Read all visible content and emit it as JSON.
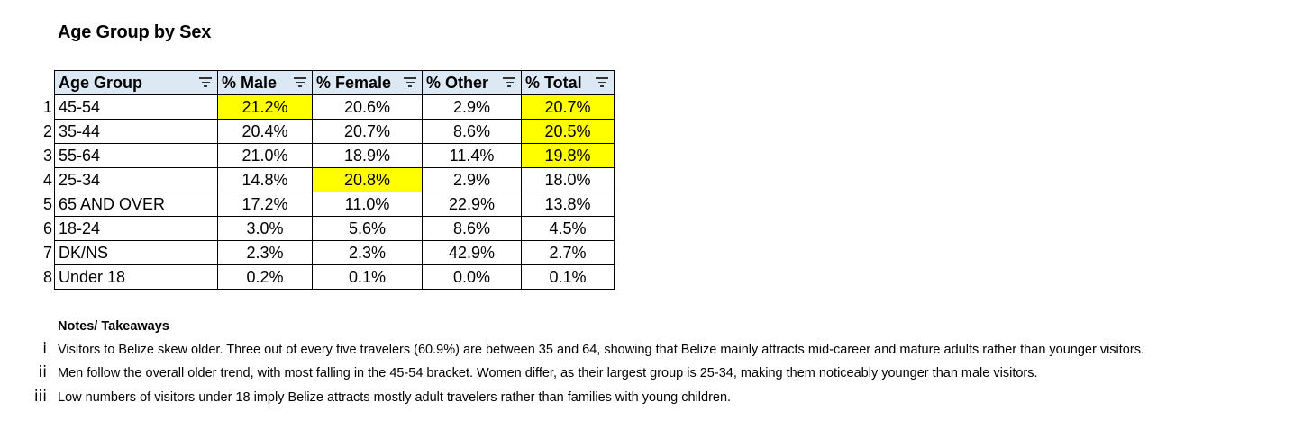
{
  "title": "Age Group by Sex",
  "table": {
    "headers": [
      "Age Group",
      "% Male",
      "% Female",
      "% Other",
      "% Total"
    ],
    "highlight_color": "#ffff00",
    "header_bg": "#dde8f5",
    "filter_icon": "filter-icon",
    "rows": [
      {
        "n": "1",
        "age": "45-54",
        "male": "21.2%",
        "female": "20.6%",
        "other": "2.9%",
        "total": "20.7%",
        "hl": [
          "male",
          "total"
        ]
      },
      {
        "n": "2",
        "age": "35-44",
        "male": "20.4%",
        "female": "20.7%",
        "other": "8.6%",
        "total": "20.5%",
        "hl": [
          "total"
        ]
      },
      {
        "n": "3",
        "age": "55-64",
        "male": "21.0%",
        "female": "18.9%",
        "other": "11.4%",
        "total": "19.8%",
        "hl": [
          "total"
        ]
      },
      {
        "n": "4",
        "age": "25-34",
        "male": "14.8%",
        "female": "20.8%",
        "other": "2.9%",
        "total": "18.0%",
        "hl": [
          "female"
        ]
      },
      {
        "n": "5",
        "age": "65 AND OVER",
        "male": "17.2%",
        "female": "11.0%",
        "other": "22.9%",
        "total": "13.8%",
        "hl": []
      },
      {
        "n": "6",
        "age": "18-24",
        "male": "3.0%",
        "female": "5.6%",
        "other": "8.6%",
        "total": "4.5%",
        "hl": []
      },
      {
        "n": "7",
        "age": "DK/NS",
        "male": "2.3%",
        "female": "2.3%",
        "other": "42.9%",
        "total": "2.7%",
        "hl": []
      },
      {
        "n": "8",
        "age": "Under 18",
        "male": "0.2%",
        "female": "0.1%",
        "other": "0.0%",
        "total": "0.1%",
        "hl": []
      }
    ]
  },
  "notes": {
    "title": "Notes/ Takeaways",
    "items": [
      {
        "num": "i",
        "text": "Visitors to Belize skew older. Three out of every five travelers (60.9%) are between 35 and 64, showing that Belize mainly attracts mid-career and mature adults rather than younger visitors."
      },
      {
        "num": "ii",
        "text": "Men follow the overall older trend, with most falling in the 45-54 bracket. Women differ, as their largest group is 25-34, making them noticeably younger than male visitors."
      },
      {
        "num": "iii",
        "text": "Low numbers of visitors under 18 imply Belize attracts mostly adult travelers rather than families with young children."
      }
    ]
  }
}
